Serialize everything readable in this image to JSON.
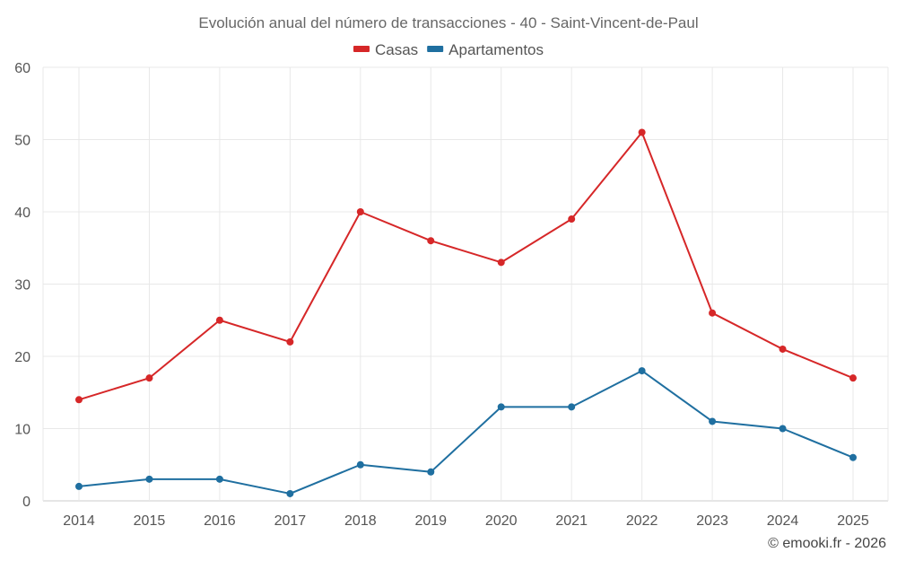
{
  "chart_data": {
    "type": "line",
    "title": "Evolución anual del número de transacciones - 40 - Saint-Vincent-de-Paul",
    "categories": [
      "2014",
      "2015",
      "2016",
      "2017",
      "2018",
      "2019",
      "2020",
      "2021",
      "2022",
      "2023",
      "2024",
      "2025"
    ],
    "series": [
      {
        "name": "Casas",
        "color": "#d62728",
        "values": [
          14,
          17,
          25,
          22,
          40,
          36,
          33,
          39,
          51,
          26,
          21,
          17
        ]
      },
      {
        "name": "Apartamentos",
        "color": "#1f6fa0",
        "values": [
          2,
          3,
          3,
          1,
          5,
          4,
          13,
          13,
          18,
          11,
          10,
          6
        ]
      }
    ],
    "ylim": [
      0,
      60
    ],
    "yticks": [
      0,
      10,
      20,
      30,
      40,
      50,
      60
    ],
    "xlabel": "",
    "ylabel": "",
    "grid": true,
    "legend_position": "top-center"
  },
  "credit": "© emooki.fr - 2026"
}
